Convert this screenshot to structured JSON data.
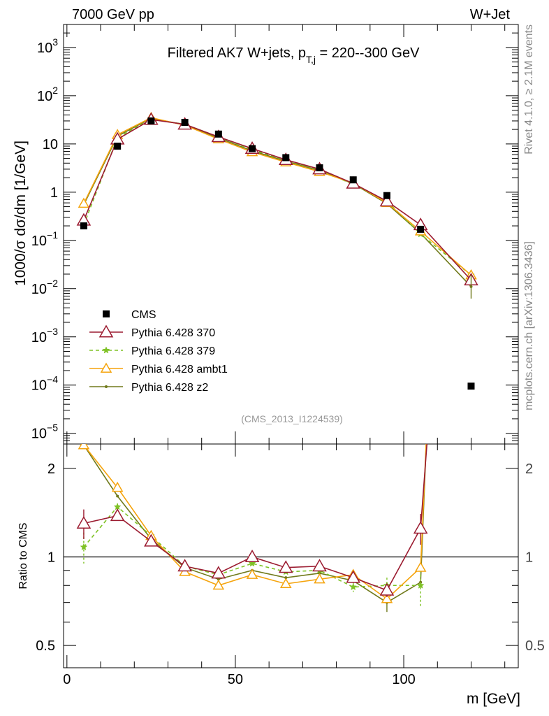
{
  "header": {
    "left": "7000 GeV pp",
    "right": "W+Jet"
  },
  "side_labels": {
    "rivet": "Rivet 4.1.0, ≥ 2.1M events",
    "mcplots": "mcplots.cern.ch [arXiv:1306.3436]"
  },
  "colors": {
    "cms": "#000000",
    "py370": "#9b1b30",
    "py379": "#7ec225",
    "ambt1": "#f5a40d",
    "z2": "#707a1b"
  },
  "chart_data": [
    {
      "type": "line",
      "title_main": "Filtered AK7 W+jets, p",
      "title_sub": "T,j",
      "title_rest": " = 220--300 GeV",
      "ylabel": "1000/σ  dσ/dm [1/GeV]",
      "yscale": "log",
      "ylim": [
        6e-06,
        3000
      ],
      "xlim": [
        -1,
        134
      ],
      "y_ticks": [
        {
          "v": 1e-05,
          "base": "10",
          "exp": "−5"
        },
        {
          "v": 0.0001,
          "base": "10",
          "exp": "−4"
        },
        {
          "v": 0.001,
          "base": "10",
          "exp": "−3"
        },
        {
          "v": 0.01,
          "base": "10",
          "exp": "−2"
        },
        {
          "v": 0.1,
          "base": "10",
          "exp": "−1"
        },
        {
          "v": 1,
          "base": "1",
          "exp": ""
        },
        {
          "v": 10,
          "base": "10",
          "exp": ""
        },
        {
          "v": 100,
          "base": "10",
          "exp": "2"
        },
        {
          "v": 1000,
          "base": "10",
          "exp": "3"
        }
      ],
      "watermark": "(CMS_2013_I1224539)",
      "legend": [
        "CMS",
        "Pythia 6.428 370",
        "Pythia 6.428 379",
        "Pythia 6.428 ambt1",
        "Pythia 6.428 z2"
      ],
      "data_points": {
        "name": "CMS",
        "x": [
          5,
          15,
          25,
          35,
          45,
          55,
          65,
          75,
          85,
          95,
          105,
          120
        ],
        "y": [
          0.2,
          9,
          30,
          28,
          16,
          8,
          5.2,
          3.2,
          1.8,
          0.85,
          0.17,
          9.5e-05
        ]
      },
      "series": [
        {
          "name": "Pythia 6.428 370",
          "x": [
            5,
            15,
            25,
            35,
            45,
            55,
            65,
            75,
            85,
            95,
            105,
            120
          ],
          "y": [
            0.26,
            12.5,
            32,
            25.5,
            14,
            8,
            4.7,
            3,
            1.52,
            0.65,
            0.21,
            0.015
          ]
        },
        {
          "name": "Pythia 6.428 379",
          "x": [
            5,
            15,
            25,
            35,
            45,
            55,
            65,
            75,
            85,
            95,
            105,
            120
          ],
          "y": [
            0.21,
            13.5,
            33,
            25.5,
            14,
            7.6,
            4.6,
            2.9,
            1.45,
            0.65,
            0.135,
            0.019
          ]
        },
        {
          "name": "Pythia 6.428 ambt1",
          "x": [
            5,
            15,
            25,
            35,
            45,
            55,
            65,
            75,
            85,
            95,
            105,
            120
          ],
          "y": [
            0.58,
            15.5,
            35,
            24.5,
            12.6,
            6.8,
            4.2,
            2.65,
            1.55,
            0.6,
            0.155,
            0.019
          ]
        },
        {
          "name": "Pythia 6.428 z2",
          "x": [
            5,
            15,
            25,
            35,
            45,
            55,
            65,
            75,
            85,
            95,
            105,
            120
          ],
          "y": [
            0.55,
            14.5,
            34,
            25,
            13.3,
            7.2,
            4.4,
            2.8,
            1.5,
            0.58,
            0.14,
            0.011
          ]
        }
      ]
    },
    {
      "type": "line",
      "ylabel": "Ratio to CMS",
      "xlabel": "m [GeV]",
      "yscale": "log",
      "ylim": [
        0.42,
        2.42
      ],
      "xlim": [
        -1,
        134
      ],
      "y_ticks": [
        {
          "v": 0.5,
          "label": "0.5"
        },
        {
          "v": 1,
          "label": "1"
        },
        {
          "v": 2,
          "label": "2"
        }
      ],
      "x_ticks": [
        {
          "v": 0,
          "label": "0"
        },
        {
          "v": 50,
          "label": "50"
        },
        {
          "v": 100,
          "label": "100"
        }
      ],
      "series": [
        {
          "name": "Pythia 6.428 370",
          "x": [
            5,
            15,
            25,
            35,
            45,
            55,
            65,
            75,
            85,
            95,
            105,
            107.5
          ],
          "y": [
            1.3,
            1.38,
            1.13,
            0.93,
            0.88,
            1.0,
            0.92,
            0.93,
            0.85,
            0.77,
            1.25,
            3.0
          ],
          "err": [
            0.15,
            0.04,
            0.03,
            0,
            0,
            0,
            0,
            0,
            0,
            0.04,
            0.15,
            0
          ]
        },
        {
          "name": "Pythia 6.428 379",
          "x": [
            5,
            15,
            25,
            35,
            45,
            55,
            65,
            75,
            85,
            95,
            105
          ],
          "y": [
            1.08,
            1.48,
            1.18,
            0.93,
            0.87,
            0.95,
            0.89,
            0.9,
            0.79,
            0.8,
            0.8
          ],
          "err": [
            0.13,
            0.04,
            0.02,
            0,
            0,
            0,
            0,
            0,
            0.03,
            0.05,
            0.13
          ]
        },
        {
          "name": "Pythia 6.428 ambt1",
          "x": [
            3,
            5,
            15,
            25,
            35,
            45,
            55,
            65,
            75,
            85,
            95,
            105,
            107
          ],
          "y": [
            2.8,
            2.4,
            1.72,
            1.18,
            0.89,
            0.8,
            0.87,
            0.81,
            0.84,
            0.87,
            0.72,
            0.92,
            3.0
          ],
          "err": [
            0,
            0,
            0,
            0,
            0,
            0,
            0,
            0,
            0,
            0,
            0,
            0,
            0
          ]
        },
        {
          "name": "Pythia 6.428 z2",
          "x": [
            3,
            5,
            15,
            25,
            35,
            45,
            55,
            65,
            75,
            85,
            95,
            105,
            107
          ],
          "y": [
            2.8,
            2.4,
            1.61,
            1.15,
            0.92,
            0.84,
            0.9,
            0.85,
            0.88,
            0.83,
            0.7,
            0.82,
            3.0
          ],
          "err": [
            0,
            0,
            0,
            0,
            0,
            0,
            0,
            0,
            0,
            0,
            0.05,
            0,
            0
          ]
        }
      ]
    }
  ]
}
